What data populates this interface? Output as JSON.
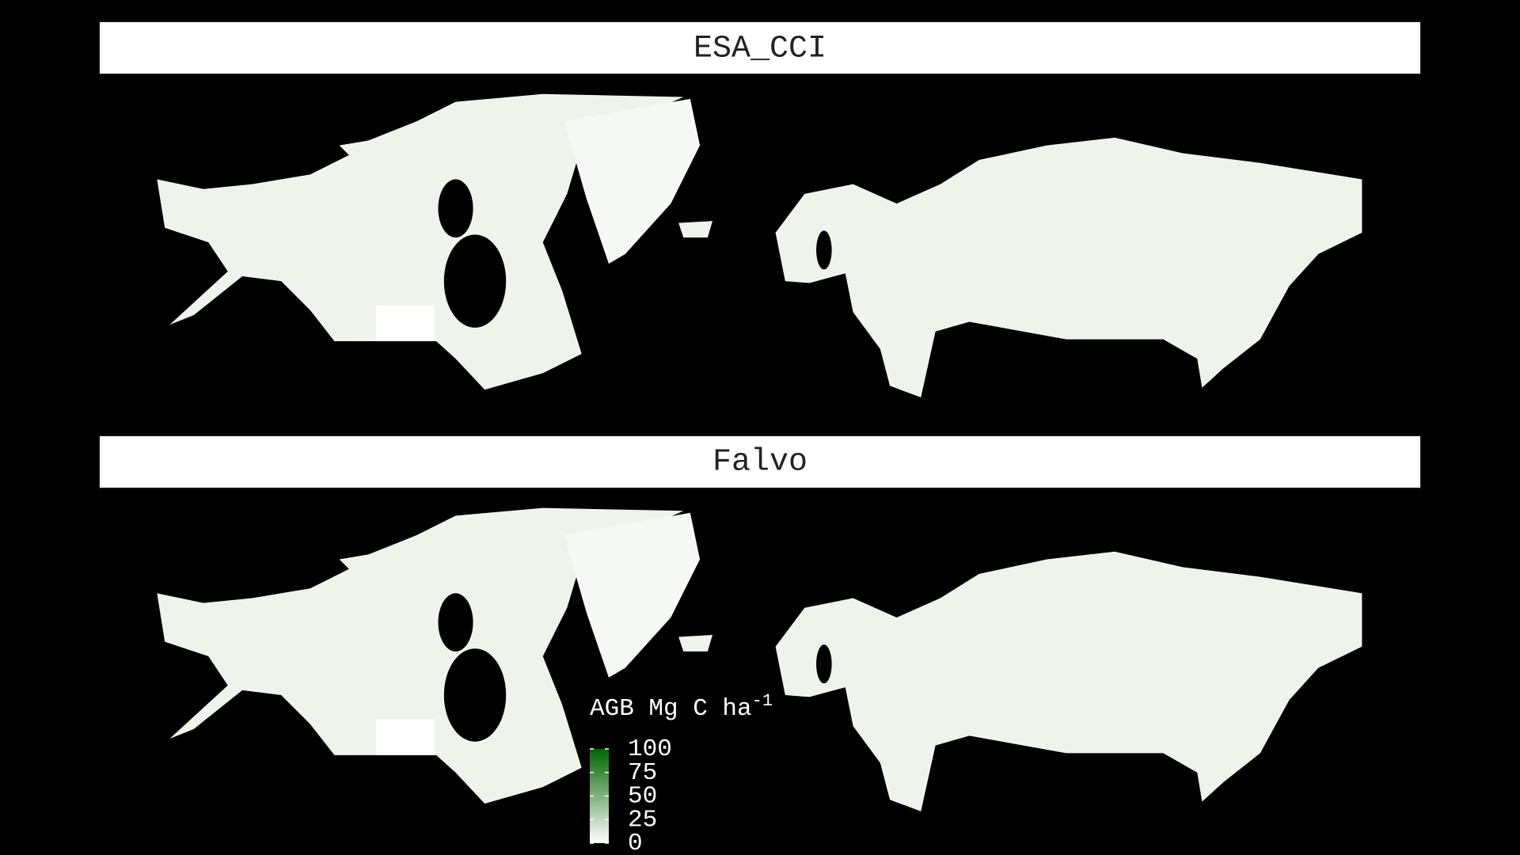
{
  "panels": [
    {
      "title": "ESA_CCI"
    },
    {
      "title": "Falvo"
    }
  ],
  "legend": {
    "title": "AGB Mg C ha",
    "title_superscript": "-1",
    "ticks": [
      0,
      25,
      50,
      75,
      100
    ],
    "colors": [
      "#ffffff",
      "#006400"
    ]
  }
}
